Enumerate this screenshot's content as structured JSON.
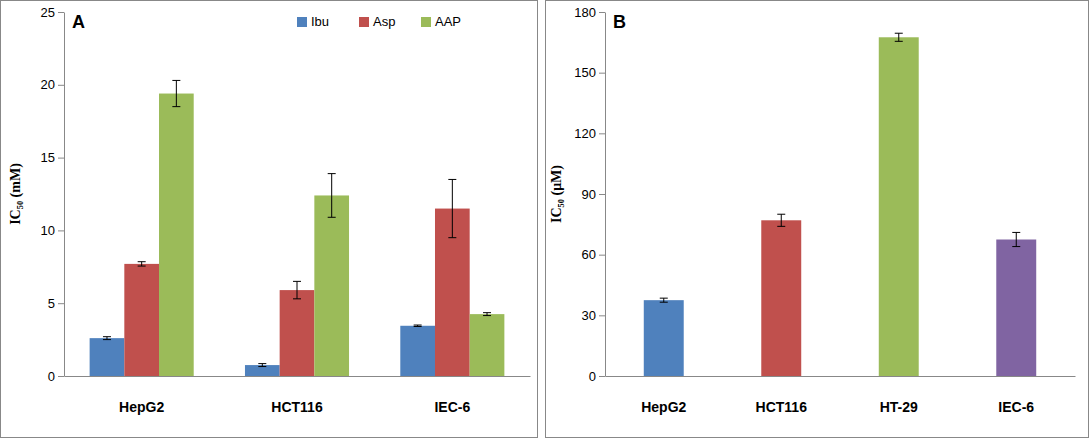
{
  "chart_data": [
    {
      "type": "bar",
      "title": "A",
      "y_label": "IC₅₀ (mM)",
      "categories": [
        "HepG2",
        "HCT116",
        "IEC-6"
      ],
      "series": [
        {
          "name": "Ibu",
          "color": "#4f81bd",
          "values": [
            2.6,
            0.75,
            3.45
          ],
          "errors": [
            0.1,
            0.1,
            0.05
          ]
        },
        {
          "name": "Asp",
          "color": "#c0504d",
          "values": [
            7.7,
            5.9,
            11.5
          ],
          "errors": [
            0.15,
            0.6,
            2.0
          ]
        },
        {
          "name": "AAP",
          "color": "#9bbb59",
          "values": [
            19.4,
            12.4,
            4.25
          ],
          "errors": [
            0.9,
            1.5,
            0.1
          ]
        }
      ],
      "ylim": [
        0,
        25
      ],
      "yticks": [
        0,
        5,
        10,
        15,
        20,
        25
      ],
      "grid": false,
      "legend": "top"
    },
    {
      "type": "bar",
      "title": "B",
      "y_label": "IC₅₀ (μM)",
      "categories": [
        "HepG2",
        "HCT116",
        "HT-29",
        "IEC-6"
      ],
      "values": [
        37.5,
        77,
        167.5,
        67.5
      ],
      "errors": [
        1,
        3,
        2,
        3.5
      ],
      "colors": [
        "#4f81bd",
        "#c0504d",
        "#9bbb59",
        "#8064a2"
      ],
      "ylim": [
        0,
        180
      ],
      "yticks": [
        0,
        30,
        60,
        90,
        120,
        150,
        180
      ],
      "grid": false
    }
  ]
}
